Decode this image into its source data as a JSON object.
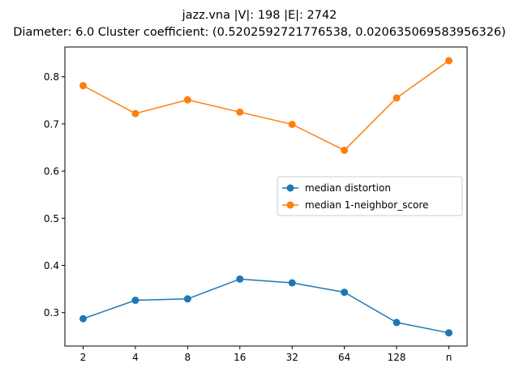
{
  "chart_data": {
    "type": "line",
    "title_line1": "jazz.vna |V|: 198 |E|: 2742",
    "title_line2": "Diameter: 6.0 Cluster coefficient: (0.5202592721776538, 0.020635069583956326)",
    "categories": [
      "2",
      "4",
      "8",
      "16",
      "32",
      "64",
      "128",
      "n"
    ],
    "yticks": [
      "0.3",
      "0.4",
      "0.5",
      "0.6",
      "0.7",
      "0.8"
    ],
    "ylim": [
      0.229,
      0.863
    ],
    "grid": false,
    "legend_position": "center-right",
    "series": [
      {
        "name": "median distortion",
        "color": "#1f77b4",
        "values": [
          0.287,
          0.326,
          0.329,
          0.371,
          0.363,
          0.343,
          0.279,
          0.257
        ]
      },
      {
        "name": "median 1-neighbor_score",
        "color": "#ff7f0e",
        "values": [
          0.781,
          0.722,
          0.751,
          0.725,
          0.699,
          0.644,
          0.755,
          0.834
        ]
      }
    ]
  }
}
